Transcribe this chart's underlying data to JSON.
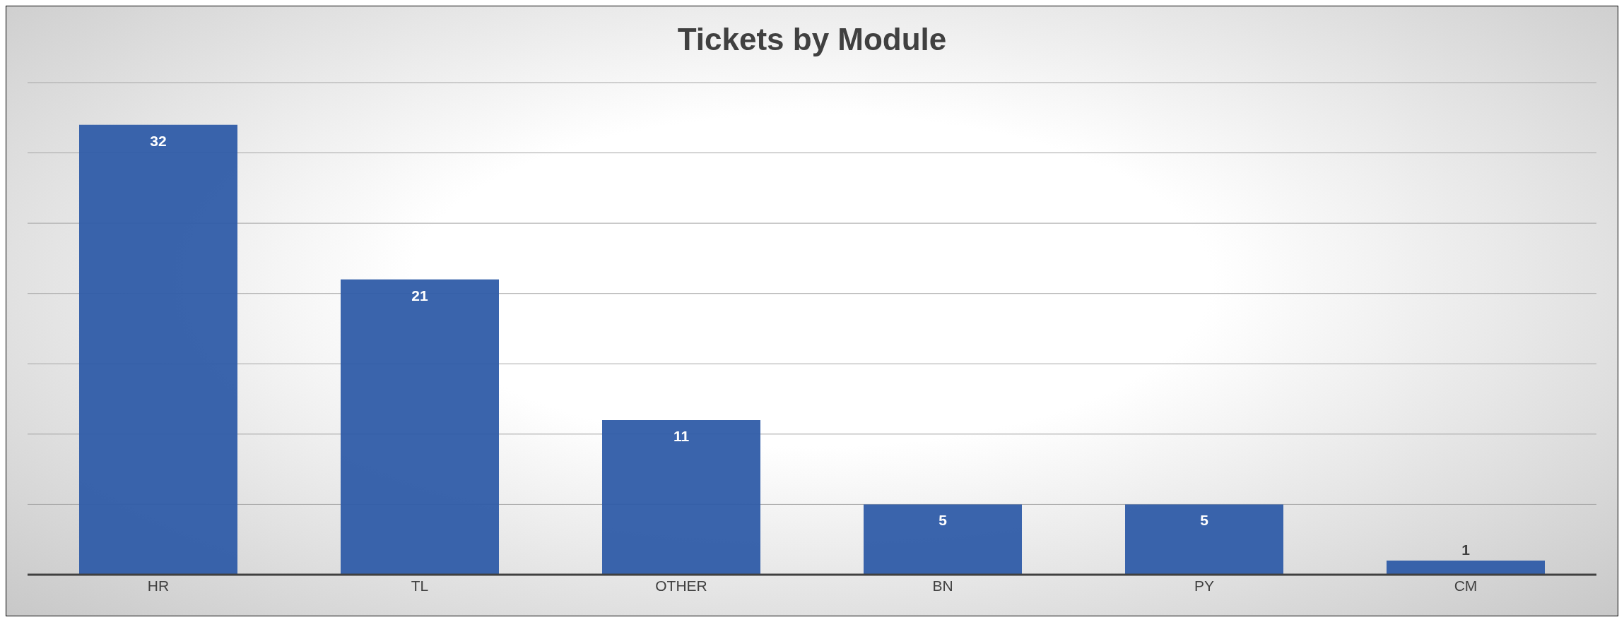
{
  "chart_data": {
    "type": "bar",
    "title": "Tickets by Module",
    "categories": [
      "HR",
      "TL",
      "OTHER",
      "BN",
      "PY",
      "CM"
    ],
    "values": [
      32,
      21,
      11,
      5,
      5,
      1
    ],
    "color": "#2f5ca8",
    "ylim": [
      0,
      35
    ],
    "yticks": [
      {
        "value": 0,
        "label": null
      },
      {
        "value": 5,
        "label": null
      },
      {
        "value": 10,
        "label": null
      },
      {
        "value": 15,
        "label": null
      },
      {
        "value": 20,
        "label": null
      },
      {
        "value": 25,
        "label": null
      },
      {
        "value": 30,
        "label": null
      },
      {
        "value": 35,
        "label": null
      }
    ],
    "grid": "y",
    "data_labels": true
  }
}
